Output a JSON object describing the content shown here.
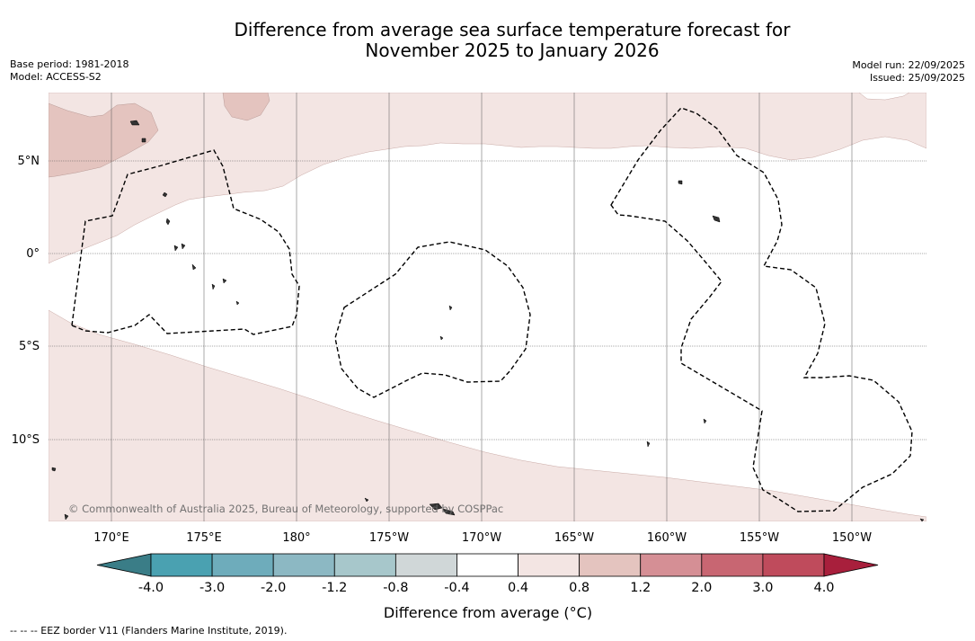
{
  "title": {
    "line1": "Difference from average sea surface temperature forecast for",
    "line2": "November 2025 to January 2026"
  },
  "meta_left": {
    "base_period": "Base period: 1981-2018",
    "model": "Model: ACCESS-S2"
  },
  "meta_right": {
    "model_run": "Model run: 22/09/2025",
    "issued": "Issued: 25/09/2025"
  },
  "map": {
    "lat_labels": [
      "5°N",
      "0°",
      "5°S",
      "10°S"
    ],
    "lon_labels": [
      "170°E",
      "175°E",
      "180°",
      "175°W",
      "170°W",
      "165°W",
      "160°W",
      "155°W",
      "150°W"
    ],
    "copyright": "© Commonwealth of Australia 2025, Bureau of Meteorology, supported by COSPPac",
    "colors": {
      "anomaly_0_4_to_0_8": "#f3e5e3",
      "anomaly_0_8_to_1_2": "#e4c4bf"
    }
  },
  "colorbar": {
    "label": "Difference from average (°C)",
    "ticks": [
      "-4.0",
      "-3.0",
      "-2.0",
      "-1.2",
      "-0.8",
      "-0.4",
      "0.4",
      "0.8",
      "1.2",
      "2.0",
      "3.0",
      "4.0"
    ],
    "colors": [
      "#3a7d87",
      "#4aa1b1",
      "#6eacbb",
      "#8cb8c3",
      "#a7c7cb",
      "#d0d7d8",
      "#ffffff",
      "#f3e5e3",
      "#e4c4bf",
      "#d58f95",
      "#c86672",
      "#bf4b5c",
      "#a81f3c"
    ]
  },
  "footnote": "--  --  -- EEZ border V11 (Flanders Marine Institute, 2019)."
}
